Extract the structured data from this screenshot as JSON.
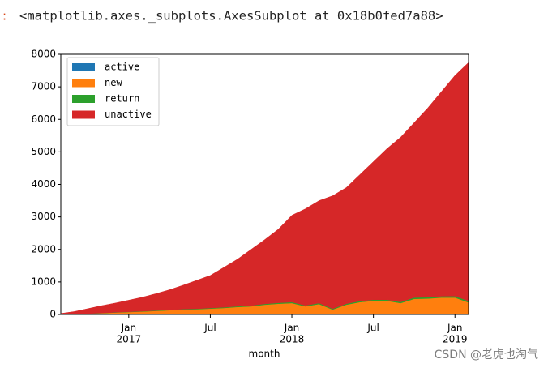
{
  "output": {
    "prompt": ":",
    "text": "<matplotlib.axes._subplots.AxesSubplot at 0x18b0fed7a88>"
  },
  "watermark": "CSDN @老虎也淘气",
  "chart_data": {
    "type": "stacked-area",
    "x_label": "month",
    "x": [
      "2016-08",
      "2016-09",
      "2016-10",
      "2016-11",
      "2016-12",
      "2017-01",
      "2017-02",
      "2017-03",
      "2017-04",
      "2017-05",
      "2017-06",
      "2017-07",
      "2017-08",
      "2017-09",
      "2017-10",
      "2017-11",
      "2017-12",
      "2018-01",
      "2018-02",
      "2018-03",
      "2018-04",
      "2018-05",
      "2018-06",
      "2018-07",
      "2018-08",
      "2018-09",
      "2018-10",
      "2018-11",
      "2018-12",
      "2019-01",
      "2019-02"
    ],
    "xlim": [
      "2016-08",
      "2019-02"
    ],
    "xticks": [
      {
        "value": "2017-01",
        "label": "Jan",
        "year": "2017"
      },
      {
        "value": "2017-07",
        "label": "Jul"
      },
      {
        "value": "2018-01",
        "label": "Jan",
        "year": "2018"
      },
      {
        "value": "2018-07",
        "label": "Jul"
      },
      {
        "value": "2019-01",
        "label": "Jan",
        "year": "2019"
      }
    ],
    "ylim": [
      0,
      8000
    ],
    "yticks": [
      0,
      1000,
      2000,
      3000,
      4000,
      5000,
      6000,
      7000,
      8000
    ],
    "legend": "upper left",
    "series": [
      {
        "name": "active",
        "color": "#1f77b4",
        "values": [
          0,
          0,
          0,
          0,
          0,
          0,
          0,
          0,
          0,
          0,
          0,
          0,
          0,
          0,
          0,
          0,
          0,
          0,
          0,
          0,
          0,
          0,
          0,
          0,
          0,
          0,
          0,
          0,
          0,
          0,
          0
        ]
      },
      {
        "name": "new",
        "color": "#ff7f0e",
        "values": [
          5,
          15,
          25,
          40,
          60,
          75,
          90,
          110,
          130,
          150,
          160,
          180,
          200,
          230,
          250,
          300,
          330,
          350,
          250,
          320,
          150,
          300,
          380,
          420,
          420,
          350,
          480,
          490,
          520,
          520,
          370
        ]
      },
      {
        "name": "return",
        "color": "#2ca02c",
        "values": [
          0,
          2,
          3,
          5,
          6,
          8,
          10,
          12,
          14,
          15,
          16,
          18,
          20,
          22,
          25,
          25,
          28,
          30,
          28,
          30,
          25,
          30,
          32,
          35,
          35,
          35,
          40,
          40,
          42,
          45,
          45
        ]
      },
      {
        "name": "unactive",
        "color": "#d62728",
        "values": [
          25,
          73,
          152,
          225,
          284,
          357,
          430,
          518,
          616,
          735,
          874,
          1002,
          1230,
          1448,
          1725,
          1975,
          2262,
          2670,
          2972,
          3150,
          3475,
          3570,
          3888,
          4245,
          4645,
          5065,
          5380,
          5820,
          6288,
          6785,
          7335
        ]
      }
    ]
  }
}
